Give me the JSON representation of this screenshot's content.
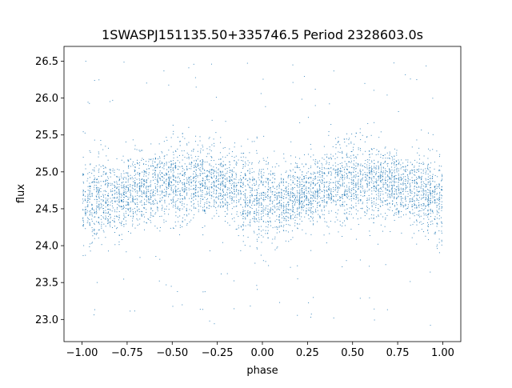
{
  "chart_data": {
    "type": "scatter",
    "title": "1SWASPJ151135.50+335746.5 Period 2328603.0s",
    "xlabel": "phase",
    "ylabel": "flux",
    "xlim": [
      -1.1,
      1.1
    ],
    "ylim": [
      22.7,
      26.7
    ],
    "xticks": [
      -1.0,
      -0.75,
      -0.5,
      -0.25,
      0.0,
      0.25,
      0.5,
      0.75,
      1.0
    ],
    "xtick_labels": [
      "−1.00",
      "−0.75",
      "−0.50",
      "−0.25",
      "0.00",
      "0.25",
      "0.50",
      "0.75",
      "1.00"
    ],
    "yticks": [
      23.0,
      23.5,
      24.0,
      24.5,
      25.0,
      25.5,
      26.0,
      26.5
    ],
    "ytick_labels": [
      "23.0",
      "23.5",
      "24.0",
      "24.5",
      "25.0",
      "25.5",
      "26.0",
      "26.5"
    ],
    "grid": false,
    "marker_color": "#1f77b4",
    "marker": "dot",
    "profile": {
      "phase": [
        -1.0,
        -0.9,
        -0.8,
        -0.7,
        -0.6,
        -0.5,
        -0.4,
        -0.3,
        -0.2,
        -0.1,
        0.0,
        0.1,
        0.2,
        0.3,
        0.4,
        0.5,
        0.6,
        0.7,
        0.8,
        0.9,
        1.0
      ],
      "flux_mean": [
        24.6,
        24.6,
        24.65,
        24.75,
        24.85,
        24.85,
        24.85,
        24.85,
        24.8,
        24.7,
        24.6,
        24.6,
        24.65,
        24.75,
        24.85,
        24.85,
        24.85,
        24.85,
        24.8,
        24.7,
        24.6
      ],
      "flux_spread": [
        0.35,
        0.35,
        0.3,
        0.3,
        0.35,
        0.35,
        0.35,
        0.3,
        0.3,
        0.35,
        0.4,
        0.35,
        0.3,
        0.3,
        0.35,
        0.35,
        0.35,
        0.3,
        0.3,
        0.35,
        0.35
      ]
    }
  }
}
